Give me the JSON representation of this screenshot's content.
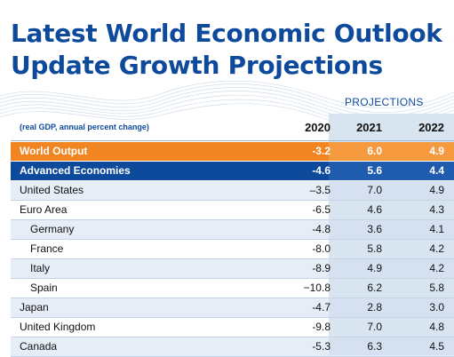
{
  "title": {
    "line1": "Latest World Economic Outlook",
    "line2": "Update Growth Projections"
  },
  "table": {
    "projections_label": "PROJECTIONS",
    "subtitle": "(real GDP, annual percent change)",
    "years": [
      "2020",
      "2021",
      "2022"
    ],
    "rows": [
      {
        "name": "World Output",
        "values": [
          "-3.2",
          "6.0",
          "4.9"
        ]
      },
      {
        "name": "Advanced Economies",
        "values": [
          "-4.6",
          "5.6",
          "4.4"
        ]
      },
      {
        "name": "United States",
        "values": [
          "–3.5",
          "7.0",
          "4.9"
        ]
      },
      {
        "name": "Euro Area",
        "values": [
          "-6.5",
          "4.6",
          "4.3"
        ]
      },
      {
        "name": "Germany",
        "values": [
          "-4.8",
          "3.6",
          "4.1"
        ]
      },
      {
        "name": "France",
        "values": [
          "-8.0",
          "5.8",
          "4.2"
        ]
      },
      {
        "name": "Italy",
        "values": [
          "-8.9",
          "4.9",
          "4.2"
        ]
      },
      {
        "name": "Spain",
        "values": [
          "−10.8",
          "6.2",
          "5.8"
        ]
      },
      {
        "name": "Japan",
        "values": [
          "-4.7",
          "2.8",
          "3.0"
        ]
      },
      {
        "name": "United Kingdom",
        "values": [
          "-9.8",
          "7.0",
          "4.8"
        ]
      },
      {
        "name": "Canada",
        "values": [
          "-5.3",
          "6.3",
          "4.5"
        ]
      }
    ]
  },
  "colors": {
    "title_blue": "#0d4a9c",
    "world_orange": "#f08522",
    "advanced_blue": "#0d4a9c",
    "projection_shade": "#d9e4f1"
  }
}
